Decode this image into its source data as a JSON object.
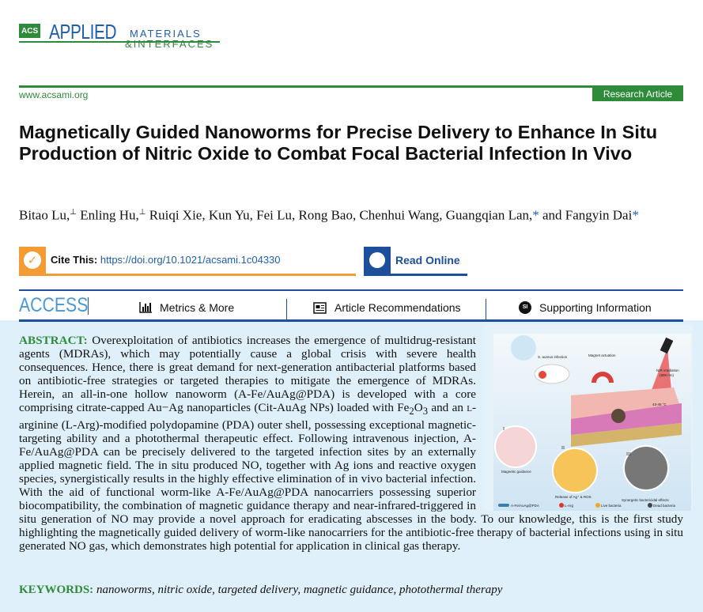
{
  "journal": {
    "logo_acs": "ACS",
    "logo_applied": "APPLIED",
    "logo_materials": "MATERIALS",
    "logo_interfaces": "&INTERFACES",
    "url": "www.acsami.org",
    "article_type": "Research Article"
  },
  "title": "Magnetically Guided Nanoworms for Precise Delivery to Enhance In Situ Production of Nitric Oxide to Combat Focal Bacterial Infection In Vivo",
  "authors": {
    "line1": "Bitao Lu,",
    "a1": "⊥",
    "line2": " Enling Hu,",
    "a2": "⊥",
    "line3": " Ruiqi Xie, Kun Yu, Fei Lu, Rong Bao, Chenhui Wang, Guangqian Lan,",
    "star1": "*",
    "line4": " and Fangyin Dai",
    "star2": "*"
  },
  "cite": {
    "label": "Cite This:",
    "doi": "https://doi.org/10.1021/acsami.1c04330",
    "icon": "check-icon"
  },
  "read_online": {
    "label": "Read Online",
    "icon": "globe-icon"
  },
  "access": {
    "label": "ACCESS",
    "tabs": [
      {
        "label": "Metrics & More",
        "icon": "bar-chart-icon"
      },
      {
        "label": "Article Recommendations",
        "icon": "newspaper-icon"
      },
      {
        "label": "Supporting Information",
        "icon": "si-icon",
        "icon_text": "SI"
      }
    ]
  },
  "abstract": {
    "label": "ABSTRACT:",
    "p1": " Overexploitation of antibiotics increases the emergence of multidrug-resistant agents (MDRAs), which may potentially cause a global crisis with severe health consequences. Hence, there is great demand for next-generation antibacterial platforms based on antibiotic-free strategies or targeted therapies to mitigate the emergence of MDRAs. Herein, an all-in-one hollow nanoworm (A-Fe/AuAg@PDA) is developed with a core comprising citrate-capped Au−Ag nanoparticles (Cit-AuAg NPs) loaded with Fe",
    "sub1": "2",
    "mid1": "O",
    "sub2": "3",
    "p2": " and an ",
    "sc": "l",
    "p3": "-arginine (L-Arg)-modified polydopamine (PDA) outer shell, possessing exceptional magnetic-targeting ability and a photothermal therapeutic effect. Following intravenous injection, A-Fe/AuAg@PDA can be precisely delivered to the targeted infection sites by an externally applied magnetic field. The in situ produced NO, together with Ag ions and reactive oxygen species, synergistically results in the highly effective elimination of in vivo bacterial infection. With the aid of functional worm-like A-Fe/AuAg@PDA nanocarriers possessing superior biocompatibility, the combination of magnetic guidance therapy and near-infrared-triggered in situ generation of NO may provide a novel approach for eradicating abscesses in the body. To our knowledge, this is the first study highlighting the magnetically guided delivery of worm-like nanocarriers for the antibiotic-free therapy of bacterial infections using in situ generated NO gas, which demonstrates high potential for application in clinical gas therapy."
  },
  "figure": {
    "labels": {
      "infection": "S. aureus infection",
      "magnet": "Magnet actuation",
      "nir": "NIR irradiation",
      "nir2": "(808 nm)",
      "temp": "43-45 °C",
      "i": "I",
      "ii": "II",
      "iii": "III",
      "guidance": "Magnetic guidance",
      "release": "Release of Ag⁺ & ROS",
      "synergy": "Synergetic bactericidal effects",
      "ros": "ROS",
      "legend1": "A-Fe/AuAg@PDA",
      "legend2": "L-Arg",
      "legend3": "Live bacteria",
      "legend4": "Dead bacteria"
    }
  },
  "keywords": {
    "label": "KEYWORDS:",
    "text": "nanoworms, nitric oxide, targeted delivery, magnetic guidance, photothermal therapy"
  },
  "colors": {
    "green": "#2e8b3a",
    "blue": "#1d4f9c",
    "orange": "#f39c35",
    "abstract_bg": "#dff0fa"
  }
}
